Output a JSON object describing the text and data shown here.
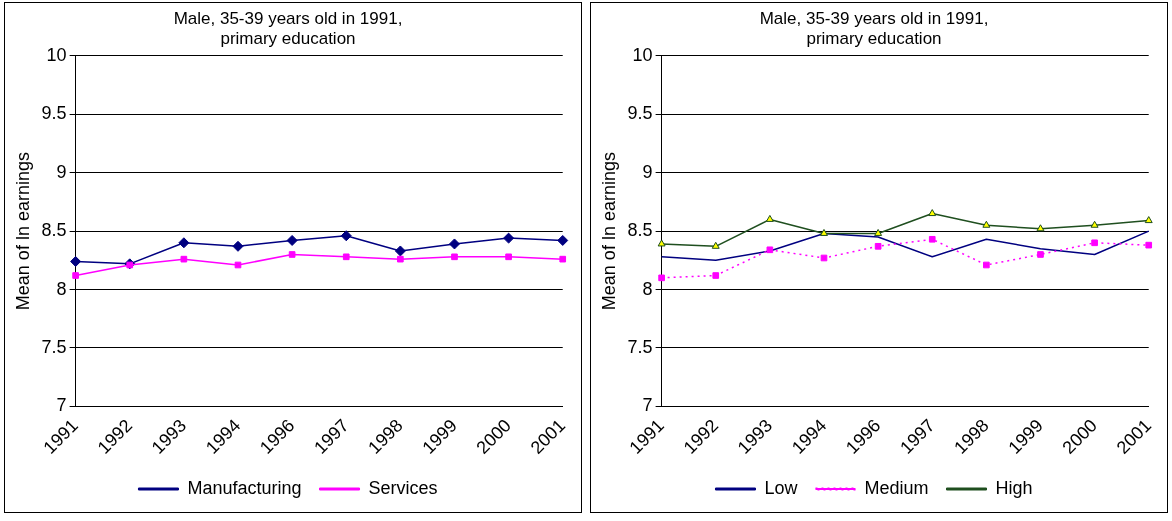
{
  "chart_data": [
    {
      "type": "line",
      "title": "Male, 35-39 years old in 1991,\nprimary education",
      "ylabel": "Mean of ln earnings",
      "categories": [
        "1991",
        "1992",
        "1993",
        "1994",
        "1996",
        "1997",
        "1998",
        "1999",
        "2000",
        "2001"
      ],
      "series": [
        {
          "name": "Manufacturing",
          "color": "#000080",
          "marker": "diamond",
          "line_style": "solid",
          "values": [
            8.24,
            8.22,
            8.4,
            8.37,
            8.42,
            8.46,
            8.33,
            8.39,
            8.44,
            8.42
          ]
        },
        {
          "name": "Services",
          "color": "#ff00ff",
          "marker": "square",
          "line_style": "solid",
          "values": [
            8.12,
            8.21,
            8.26,
            8.21,
            8.3,
            8.28,
            8.26,
            8.28,
            8.28,
            8.26
          ]
        }
      ],
      "ylim": [
        7,
        10
      ],
      "yticks": [
        7,
        7.5,
        8,
        8.5,
        9,
        9.5,
        10
      ],
      "grid": "y",
      "legend": "bottom"
    },
    {
      "type": "line",
      "title": "Male, 35-39 years old in 1991,\nprimary education",
      "ylabel": "Mean of ln earnings",
      "categories": [
        "1991",
        "1992",
        "1993",
        "1994",
        "1996",
        "1997",
        "1998",
        "1999",
        "2000",
        "2001"
      ],
      "series": [
        {
          "name": "Low",
          "color": "#000080",
          "marker": "none",
          "line_style": "solid",
          "values": [
            8.28,
            8.25,
            8.33,
            8.48,
            8.45,
            8.28,
            8.43,
            8.35,
            8.3,
            8.5
          ]
        },
        {
          "name": "Medium",
          "color": "#ff00ff",
          "marker": "square",
          "line_style": "dotted",
          "values": [
            8.1,
            8.12,
            8.34,
            8.27,
            8.37,
            8.43,
            8.21,
            8.3,
            8.4,
            8.38
          ]
        },
        {
          "name": "High",
          "color": "#1f4f1f",
          "marker": "triangle",
          "line_style": "solid",
          "values": [
            8.39,
            8.37,
            8.6,
            8.48,
            8.48,
            8.65,
            8.55,
            8.52,
            8.55,
            8.59
          ]
        }
      ],
      "ylim": [
        7,
        10
      ],
      "yticks": [
        7,
        7.5,
        8,
        8.5,
        9,
        9.5,
        10
      ],
      "grid": "y",
      "legend": "bottom"
    }
  ]
}
